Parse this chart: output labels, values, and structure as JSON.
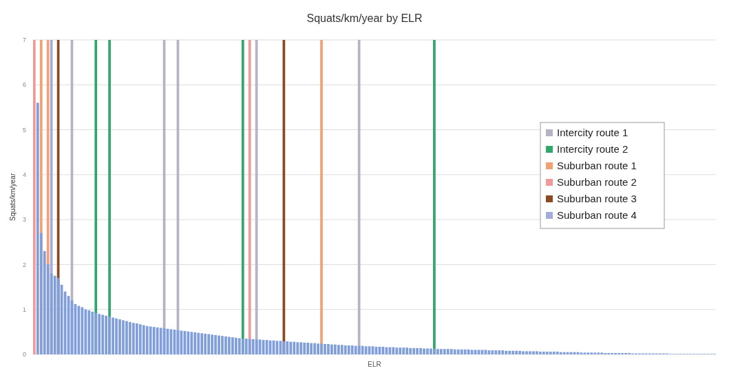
{
  "chart_data": {
    "type": "bar",
    "title": "Squats/km/year by ELR",
    "xlabel": "ELR",
    "ylabel": "Squats/km/year",
    "categories": [
      null,
      null,
      null,
      null,
      null,
      null,
      null,
      null,
      null,
      null,
      null,
      null,
      null,
      null,
      null,
      null,
      null,
      null,
      null,
      null,
      null,
      null,
      null,
      null,
      null,
      null,
      null,
      null,
      null,
      null,
      null,
      null,
      null,
      null,
      null,
      null,
      null,
      null,
      null,
      null,
      null,
      null,
      null,
      null,
      null,
      null,
      null,
      null,
      null,
      null,
      null,
      null,
      null,
      null,
      null,
      null,
      null,
      null,
      null,
      null,
      null,
      null,
      null,
      null,
      null,
      null,
      null,
      null,
      null,
      null,
      null,
      null,
      null,
      null,
      null,
      null,
      null,
      null,
      null,
      null,
      null,
      null,
      null,
      null,
      null,
      null,
      null,
      null,
      null,
      null,
      null,
      null,
      null,
      null,
      null,
      null,
      null,
      null,
      null,
      null,
      null,
      null,
      null,
      null,
      null,
      null,
      null,
      null,
      null,
      null,
      null,
      null,
      null,
      null,
      null,
      null,
      null,
      null,
      null,
      null,
      null,
      null,
      null,
      null,
      null,
      null,
      null,
      null,
      null,
      null,
      null,
      null,
      null,
      null,
      null,
      null,
      null,
      null,
      null,
      null,
      null,
      null,
      null,
      null,
      null,
      null,
      null,
      null,
      null,
      null,
      null,
      null,
      null,
      null,
      null,
      null,
      null,
      null,
      null,
      null,
      null,
      null,
      null,
      null,
      null,
      null,
      null,
      null,
      null,
      null,
      null,
      null,
      null,
      null,
      null,
      null,
      null,
      null,
      null,
      null,
      null,
      null,
      null,
      null,
      null,
      null,
      null,
      null,
      null,
      null,
      null,
      null,
      null,
      null,
      null,
      null,
      null,
      null,
      null,
      null
    ],
    "series": [
      {
        "color": "#7f9edb",
        "values": [
          null,
          5.6,
          2.7,
          2.3,
          2.0,
          1.8,
          1.75,
          1.7,
          1.55,
          1.4,
          1.3,
          1.2,
          1.12,
          1.08,
          1.05,
          1.0,
          0.98,
          0.95,
          0.92,
          0.9,
          0.88,
          0.86,
          0.84,
          0.82,
          0.8,
          0.78,
          0.76,
          0.74,
          0.72,
          0.7,
          0.69,
          0.67,
          0.65,
          0.63,
          0.62,
          0.61,
          0.6,
          0.59,
          0.58,
          0.57,
          0.56,
          0.55,
          0.54,
          0.53,
          0.52,
          0.51,
          0.5,
          0.49,
          0.48,
          0.47,
          0.46,
          0.45,
          0.44,
          0.43,
          0.42,
          0.41,
          0.4,
          0.39,
          0.38,
          0.37,
          0.36,
          0.35,
          0.35,
          0.34,
          0.34,
          0.33,
          0.33,
          0.32,
          0.32,
          0.31,
          0.31,
          0.3,
          0.3,
          0.29,
          0.29,
          0.28,
          0.28,
          0.27,
          0.27,
          0.26,
          0.26,
          0.25,
          0.25,
          0.24,
          0.24,
          0.23,
          0.23,
          0.22,
          0.22,
          0.21,
          0.21,
          0.2,
          0.2,
          0.2,
          0.19,
          0.19,
          0.19,
          0.18,
          0.18,
          0.18,
          0.17,
          0.17,
          0.17,
          0.16,
          0.16,
          0.16,
          0.15,
          0.15,
          0.15,
          0.15,
          0.14,
          0.14,
          0.14,
          0.14,
          0.13,
          0.13,
          0.13,
          0.13,
          0.12,
          0.12,
          0.12,
          0.12,
          0.12,
          0.11,
          0.11,
          0.11,
          0.11,
          0.11,
          0.1,
          0.1,
          0.1,
          0.1,
          0.1,
          0.09,
          0.09,
          0.09,
          0.09,
          0.09,
          0.08,
          0.08,
          0.08,
          0.08,
          0.08,
          0.07,
          0.07,
          0.07,
          0.07,
          0.07,
          0.06,
          0.06,
          0.06,
          0.06,
          0.06,
          0.06,
          0.05,
          0.05,
          0.05,
          0.05,
          0.05,
          0.05,
          0.04,
          0.04,
          0.04,
          0.04,
          0.04,
          0.04,
          0.04,
          0.03,
          0.03,
          0.03,
          0.03,
          0.03,
          0.03,
          0.03,
          0.03,
          0.02,
          0.02,
          0.02,
          0.02,
          0.02,
          0.02,
          0.02,
          0.02,
          0.02,
          0.02,
          0.02,
          0.01,
          0.01,
          0.01,
          0.01,
          0.01,
          0.01,
          0.01,
          0.01,
          0.01,
          0.01,
          0.01,
          0.01,
          0.01,
          0.01
        ]
      },
      {
        "name": "Intercity route 1",
        "color": "#b4b4c4",
        "values": [
          null,
          null,
          null,
          null,
          null,
          null,
          null,
          null,
          null,
          null,
          null,
          7,
          null,
          null,
          null,
          null,
          null,
          null,
          null,
          null,
          null,
          null,
          null,
          null,
          null,
          null,
          null,
          null,
          null,
          null,
          null,
          null,
          null,
          null,
          null,
          null,
          null,
          null,
          7,
          null,
          null,
          null,
          7,
          null,
          null,
          null,
          null,
          null,
          null,
          null,
          null,
          null,
          null,
          null,
          null,
          null,
          null,
          null,
          null,
          null,
          null,
          null,
          null,
          null,
          null,
          7,
          null,
          null,
          null,
          null,
          null,
          null,
          null,
          null,
          null,
          null,
          null,
          null,
          null,
          null,
          null,
          null,
          null,
          null,
          null,
          null,
          null,
          null,
          null,
          null,
          null,
          null,
          null,
          null,
          null,
          7,
          null,
          null,
          null,
          null,
          null,
          null,
          null,
          null,
          null,
          null,
          null,
          null,
          null,
          null,
          null,
          null,
          null,
          null,
          null,
          null,
          null,
          null,
          null,
          null,
          null,
          null,
          null,
          null,
          null,
          null,
          null,
          null,
          null,
          null,
          null,
          null,
          null,
          null,
          null,
          null,
          null,
          null,
          null,
          null,
          null,
          null,
          null,
          null,
          null,
          null,
          null,
          null,
          null,
          null,
          null,
          null,
          null,
          null,
          null,
          null,
          null,
          null,
          null,
          null,
          null,
          null,
          null,
          null,
          null,
          null,
          null,
          null,
          null,
          null,
          null,
          null,
          null,
          null,
          null,
          null,
          null,
          null,
          null,
          null,
          null,
          null,
          null,
          null,
          null,
          null,
          null,
          null,
          null,
          null,
          null,
          null,
          null,
          null,
          null,
          null,
          null,
          null,
          null,
          null
        ]
      },
      {
        "name": "Intercity route 2",
        "color": "#2fa86c",
        "values": [
          null,
          null,
          null,
          null,
          null,
          null,
          null,
          null,
          null,
          null,
          null,
          null,
          null,
          null,
          null,
          null,
          null,
          null,
          7,
          null,
          null,
          null,
          7,
          null,
          null,
          null,
          null,
          null,
          null,
          null,
          null,
          null,
          null,
          null,
          null,
          null,
          null,
          null,
          null,
          null,
          null,
          null,
          null,
          null,
          null,
          null,
          null,
          null,
          null,
          null,
          null,
          null,
          null,
          null,
          null,
          null,
          null,
          null,
          null,
          null,
          null,
          7,
          null,
          null,
          null,
          null,
          null,
          null,
          null,
          null,
          null,
          null,
          null,
          null,
          null,
          null,
          null,
          null,
          null,
          null,
          null,
          null,
          null,
          null,
          null,
          null,
          null,
          null,
          null,
          null,
          null,
          null,
          null,
          null,
          null,
          null,
          null,
          null,
          null,
          null,
          null,
          null,
          null,
          null,
          null,
          null,
          null,
          null,
          null,
          null,
          null,
          null,
          null,
          null,
          null,
          null,
          null,
          7,
          null,
          null,
          null,
          null,
          null,
          null,
          null,
          null,
          null,
          null,
          null,
          null,
          null,
          null,
          null,
          null,
          null,
          null,
          null,
          null,
          null,
          null,
          null,
          null,
          null,
          null,
          null,
          null,
          null,
          null,
          null,
          null,
          null,
          null,
          null,
          null,
          null,
          null,
          null,
          null,
          null,
          null,
          null,
          null,
          null,
          null,
          null,
          null,
          null,
          null,
          null,
          null,
          null,
          null,
          null,
          null,
          null,
          null,
          null,
          null,
          null,
          null,
          null,
          null,
          null,
          null,
          null,
          null,
          null,
          null,
          null,
          null,
          null,
          null,
          null,
          null,
          null,
          null,
          null,
          null,
          null,
          null
        ]
      },
      {
        "name": "Suburban route 1",
        "color": "#f2a074",
        "values": [
          null,
          null,
          7,
          null,
          7,
          null,
          null,
          null,
          null,
          null,
          null,
          null,
          null,
          null,
          null,
          null,
          null,
          null,
          null,
          null,
          null,
          null,
          null,
          null,
          null,
          null,
          null,
          null,
          null,
          null,
          null,
          null,
          null,
          null,
          null,
          null,
          null,
          null,
          null,
          null,
          null,
          null,
          null,
          null,
          null,
          null,
          null,
          null,
          null,
          null,
          null,
          null,
          null,
          null,
          null,
          null,
          null,
          null,
          null,
          null,
          null,
          null,
          null,
          null,
          null,
          null,
          null,
          null,
          null,
          null,
          null,
          null,
          null,
          null,
          null,
          null,
          null,
          null,
          null,
          null,
          null,
          null,
          null,
          null,
          7,
          null,
          null,
          null,
          null,
          null,
          null,
          null,
          null,
          null,
          null,
          null,
          null,
          null,
          null,
          null,
          null,
          null,
          null,
          null,
          null,
          null,
          null,
          null,
          null,
          null,
          null,
          null,
          null,
          null,
          null,
          null,
          null,
          null,
          null,
          null,
          null,
          null,
          null,
          null,
          null,
          null,
          null,
          null,
          null,
          null,
          null,
          null,
          null,
          null,
          null,
          null,
          null,
          null,
          null,
          null,
          null,
          null,
          null,
          null,
          null,
          null,
          null,
          null,
          null,
          null,
          null,
          null,
          null,
          null,
          null,
          null,
          null,
          null,
          null,
          null,
          null,
          null,
          null,
          null,
          null,
          null,
          null,
          null,
          null,
          null,
          null,
          null,
          null,
          null,
          null,
          null,
          null,
          null,
          null,
          null,
          null,
          null,
          null,
          null,
          null,
          null,
          null,
          null,
          null,
          null,
          null,
          null,
          null,
          null,
          null,
          null,
          null,
          null,
          null,
          null
        ]
      },
      {
        "name": "Suburban route 2",
        "color": "#f29a9a",
        "values": [
          7,
          null,
          null,
          null,
          null,
          null,
          null,
          null,
          null,
          null,
          null,
          null,
          null,
          null,
          null,
          null,
          null,
          null,
          null,
          null,
          null,
          null,
          null,
          null,
          null,
          null,
          null,
          null,
          null,
          null,
          null,
          null,
          null,
          null,
          null,
          null,
          null,
          null,
          null,
          null,
          null,
          null,
          null,
          null,
          null,
          null,
          null,
          null,
          null,
          null,
          null,
          null,
          null,
          null,
          null,
          null,
          null,
          null,
          null,
          null,
          null,
          null,
          null,
          7,
          null,
          null,
          null,
          null,
          null,
          null,
          null,
          null,
          null,
          null,
          null,
          null,
          null,
          null,
          null,
          null,
          null,
          null,
          null,
          null,
          null,
          null,
          null,
          null,
          null,
          null,
          null,
          null,
          null,
          null,
          null,
          null,
          null,
          null,
          null,
          null,
          null,
          null,
          null,
          null,
          null,
          null,
          null,
          null,
          null,
          null,
          null,
          null,
          null,
          null,
          null,
          null,
          null,
          null,
          null,
          null,
          null,
          null,
          null,
          null,
          null,
          null,
          null,
          null,
          null,
          null,
          null,
          null,
          null,
          null,
          null,
          null,
          null,
          null,
          null,
          null,
          null,
          null,
          null,
          null,
          null,
          null,
          null,
          null,
          null,
          null,
          null,
          null,
          null,
          null,
          null,
          null,
          null,
          null,
          null,
          null,
          null,
          null,
          null,
          null,
          null,
          null,
          null,
          null,
          null,
          null,
          null,
          null,
          null,
          null,
          null,
          null,
          null,
          null,
          null,
          null,
          null,
          null,
          null,
          null,
          null,
          null,
          null,
          null,
          null,
          null,
          null,
          null,
          null,
          null,
          null,
          null,
          null,
          null,
          null,
          null
        ]
      },
      {
        "name": "Suburban route 3",
        "color": "#8b4a22",
        "values": [
          null,
          null,
          null,
          null,
          null,
          null,
          null,
          7,
          null,
          null,
          null,
          null,
          null,
          null,
          null,
          null,
          null,
          null,
          null,
          null,
          null,
          null,
          null,
          null,
          null,
          null,
          null,
          null,
          null,
          null,
          null,
          null,
          null,
          null,
          null,
          null,
          null,
          null,
          null,
          null,
          null,
          null,
          null,
          null,
          null,
          null,
          null,
          null,
          null,
          null,
          null,
          null,
          null,
          null,
          null,
          null,
          null,
          null,
          null,
          null,
          null,
          null,
          null,
          null,
          null,
          null,
          null,
          null,
          null,
          null,
          null,
          null,
          null,
          7,
          null,
          null,
          null,
          null,
          null,
          null,
          null,
          null,
          null,
          null,
          null,
          null,
          null,
          null,
          null,
          null,
          null,
          null,
          null,
          null,
          null,
          null,
          null,
          null,
          null,
          null,
          null,
          null,
          null,
          null,
          null,
          null,
          null,
          null,
          null,
          null,
          null,
          null,
          null,
          null,
          null,
          null,
          null,
          null,
          null,
          null,
          null,
          null,
          null,
          null,
          null,
          null,
          null,
          null,
          null,
          null,
          null,
          null,
          null,
          null,
          null,
          null,
          null,
          null,
          null,
          null,
          null,
          null,
          null,
          null,
          null,
          null,
          null,
          null,
          null,
          null,
          null,
          null,
          null,
          null,
          null,
          null,
          null,
          null,
          null,
          null,
          null,
          null,
          null,
          null,
          null,
          null,
          null,
          null,
          null,
          null,
          null,
          null,
          null,
          null,
          null,
          null,
          null,
          null,
          null,
          null,
          null,
          null,
          null,
          null,
          null,
          null,
          null,
          null,
          null,
          null,
          null,
          null,
          null,
          null,
          null,
          null,
          null,
          null,
          null,
          null
        ]
      },
      {
        "name": "Suburban route 4",
        "color": "#a3abdb",
        "values": [
          null,
          null,
          null,
          null,
          null,
          7,
          null,
          null,
          null,
          null,
          null,
          null,
          null,
          null,
          null,
          null,
          null,
          null,
          null,
          null,
          null,
          null,
          null,
          null,
          null,
          null,
          null,
          null,
          null,
          null,
          null,
          null,
          null,
          null,
          null,
          null,
          null,
          null,
          null,
          null,
          null,
          null,
          null,
          null,
          null,
          null,
          null,
          null,
          null,
          null,
          null,
          null,
          null,
          null,
          null,
          null,
          null,
          null,
          null,
          null,
          null,
          null,
          null,
          null,
          null,
          null,
          null,
          null,
          null,
          null,
          null,
          null,
          null,
          null,
          null,
          null,
          null,
          null,
          null,
          null,
          null,
          null,
          null,
          null,
          null,
          null,
          null,
          null,
          null,
          null,
          null,
          null,
          null,
          null,
          null,
          null,
          null,
          null,
          null,
          null,
          null,
          null,
          null,
          null,
          null,
          null,
          null,
          null,
          null,
          null,
          null,
          null,
          null,
          null,
          null,
          null,
          null,
          null,
          null,
          null,
          null,
          null,
          null,
          null,
          null,
          null,
          null,
          null,
          null,
          null,
          null,
          null,
          null,
          null,
          null,
          null,
          null,
          null,
          null,
          null,
          null,
          null,
          null,
          null,
          null,
          null,
          null,
          null,
          null,
          null,
          null,
          null,
          null,
          null,
          null,
          null,
          null,
          null,
          null,
          null,
          null,
          null,
          null,
          null,
          null,
          null,
          null,
          null,
          null,
          null,
          null,
          null,
          null,
          null,
          null,
          null,
          null,
          null,
          null,
          null,
          null,
          null,
          null,
          null,
          null,
          null,
          null,
          null,
          null,
          null,
          null,
          null,
          null,
          null,
          null,
          null,
          null,
          null,
          null,
          null
        ]
      }
    ],
    "ylim": [
      0,
      7
    ],
    "yticks": [
      0,
      1,
      2,
      3,
      4,
      5,
      6,
      7
    ],
    "grid": "y",
    "legend": "right"
  }
}
